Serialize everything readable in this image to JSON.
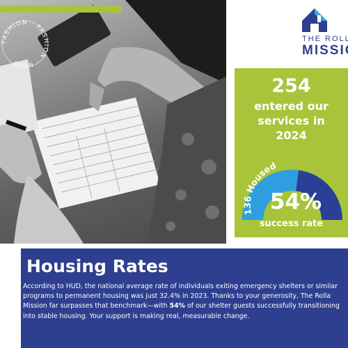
{
  "seal": {
    "text": "FASHION · FASHION · NOIS"
  },
  "logo": {
    "line1": "THE ROLLA",
    "line2": "MISSION"
  },
  "stats": {
    "entered_number": "254",
    "entered_text_line1": "entered our",
    "entered_text_line2": "services in",
    "entered_text_line3": "2024",
    "housed_label": "136 Housed",
    "housed_fraction": 0.54,
    "success_percent": "54%",
    "success_label": "success rate"
  },
  "info": {
    "title": "Housing Rates",
    "body_part1": "According to HUD, the national average rate of individuals exiting emergency shelters or similar programs to permanent housing was just 32.4% in 2023. Thanks to your generosity, The Rolla Mission far surpasses that benchmark—with ",
    "body_bold": "54%",
    "body_part2": " of our shelter guests successfully transitioning into stable housing. Your support is making real, measurable change."
  },
  "colors": {
    "green": "#a8c43a",
    "navy": "#2e3f8f",
    "gauge_blue": "#2f9ee0",
    "gauge_navy": "#2a3f96"
  }
}
